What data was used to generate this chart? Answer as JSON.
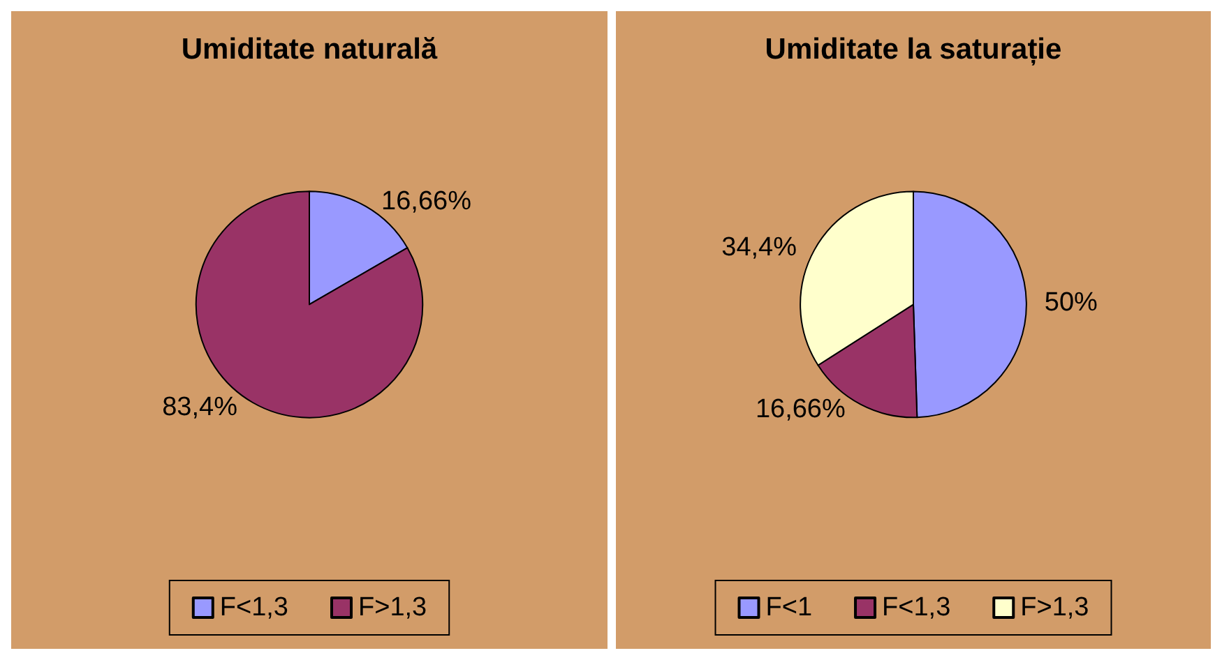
{
  "chart_data": [
    {
      "type": "pie",
      "title": "Umiditate naturală",
      "categories": [
        "F<1,3",
        "F>1,3"
      ],
      "values": [
        16.66,
        83.4
      ],
      "colors": [
        "#9999ff",
        "#993366"
      ],
      "value_labels": [
        "16,66%",
        "83,4%"
      ],
      "legend": "bottom"
    },
    {
      "type": "pie",
      "title": "Umiditate la saturație",
      "categories": [
        "F<1",
        "F<1,3",
        "F>1,3"
      ],
      "values": [
        50,
        16.66,
        34.4
      ],
      "colors": [
        "#9999ff",
        "#993366",
        "#ffffcc"
      ],
      "value_labels": [
        "50%",
        "16,66%",
        "34,4%"
      ],
      "legend": "bottom"
    }
  ]
}
